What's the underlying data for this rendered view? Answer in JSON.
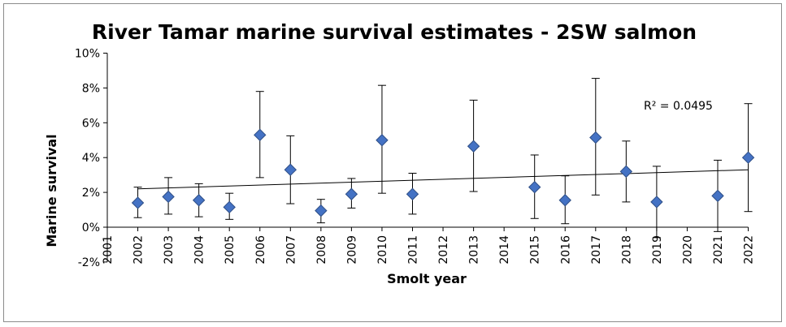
{
  "chart_data": {
    "type": "scatter",
    "title": "River Tamar marine survival estimates - 2SW salmon",
    "xlabel": "Smolt year",
    "ylabel": "Marine survival",
    "ylim": [
      -2,
      10
    ],
    "y_ticks": [
      "-2%",
      "0%",
      "2%",
      "4%",
      "6%",
      "8%",
      "10%"
    ],
    "y_tick_values": [
      -2,
      0,
      2,
      4,
      6,
      8,
      10
    ],
    "categories": [
      "2001",
      "2002",
      "2003",
      "2004",
      "2005",
      "2006",
      "2007",
      "2008",
      "2009",
      "2010",
      "2011",
      "2012",
      "2013",
      "2014",
      "2015",
      "2016",
      "2017",
      "2018",
      "2019",
      "2020",
      "2021",
      "2022"
    ],
    "series": [
      {
        "name": "Marine survival",
        "marker": "diamond",
        "color": "#4472c4",
        "points": [
          {
            "year": "2002",
            "y": 1.4,
            "low": 0.55,
            "high": 2.3
          },
          {
            "year": "2003",
            "y": 1.75,
            "low": 0.75,
            "high": 2.85
          },
          {
            "year": "2004",
            "y": 1.55,
            "low": 0.6,
            "high": 2.5
          },
          {
            "year": "2005",
            "y": 1.15,
            "low": 0.45,
            "high": 1.95
          },
          {
            "year": "2006",
            "y": 5.3,
            "low": 2.85,
            "high": 7.8
          },
          {
            "year": "2007",
            "y": 3.3,
            "low": 1.35,
            "high": 5.25
          },
          {
            "year": "2008",
            "y": 0.95,
            "low": 0.25,
            "high": 1.6
          },
          {
            "year": "2009",
            "y": 1.9,
            "low": 1.1,
            "high": 2.8
          },
          {
            "year": "2010",
            "y": 5.0,
            "low": 1.95,
            "high": 8.15
          },
          {
            "year": "2011",
            "y": 1.9,
            "low": 0.75,
            "high": 3.1
          },
          {
            "year": "2013",
            "y": 4.65,
            "low": 2.05,
            "high": 7.3
          },
          {
            "year": "2015",
            "y": 2.3,
            "low": 0.5,
            "high": 4.15
          },
          {
            "year": "2016",
            "y": 1.55,
            "low": 0.2,
            "high": 2.95
          },
          {
            "year": "2017",
            "y": 5.15,
            "low": 1.85,
            "high": 8.55
          },
          {
            "year": "2018",
            "y": 3.2,
            "low": 1.45,
            "high": 4.95
          },
          {
            "year": "2019",
            "y": 1.45,
            "low": -0.6,
            "high": 3.5
          },
          {
            "year": "2021",
            "y": 1.8,
            "low": -0.25,
            "high": 3.85
          },
          {
            "year": "2022",
            "y": 4.0,
            "low": 0.9,
            "high": 7.1
          }
        ]
      }
    ],
    "trendline": {
      "type": "linear",
      "start": {
        "year": "2002",
        "y": 2.2
      },
      "end": {
        "year": "2022",
        "y": 3.3
      },
      "r2_label": "R² = 0.0495"
    },
    "grid": false,
    "legend": "none"
  },
  "colors": {
    "marker_fill": "#4472c4",
    "marker_stroke": "#2f4f86",
    "axis": "#000000",
    "frame": "#8c8c8c"
  }
}
